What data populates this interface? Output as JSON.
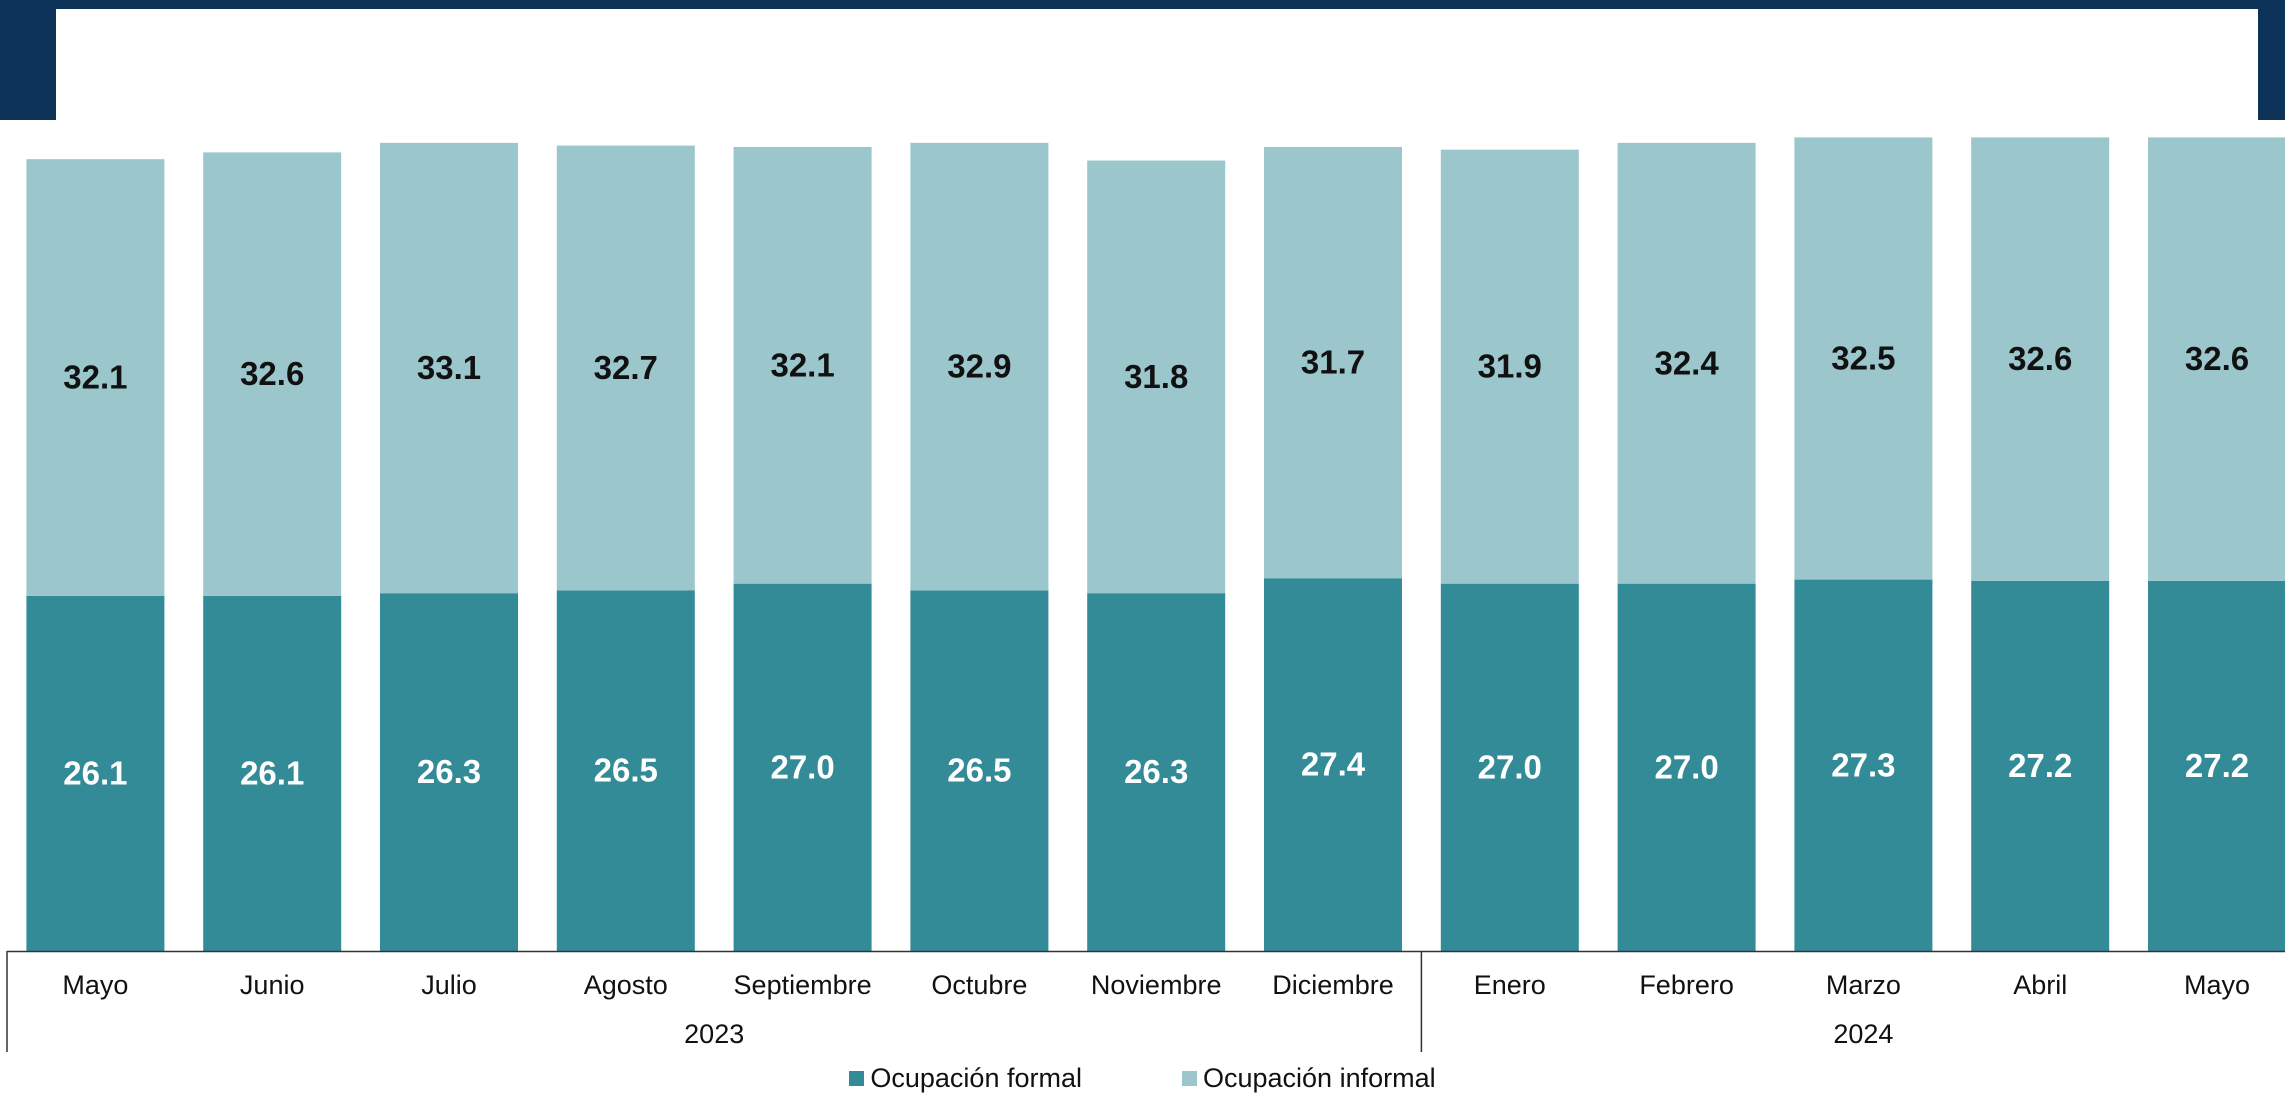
{
  "chart_data": {
    "type": "bar",
    "stacked": true,
    "categories": [
      "Mayo",
      "Junio",
      "Julio",
      "Agosto",
      "Septiembre",
      "Octubre",
      "Noviembre",
      "Diciembre",
      "Enero",
      "Febrero",
      "Marzo",
      "Abril",
      "Mayo"
    ],
    "groups": [
      {
        "label": "2023",
        "count": 8
      },
      {
        "label": "2024",
        "count": 5
      }
    ],
    "series": [
      {
        "name": "Ocupación formal",
        "color": "#348b98",
        "values": [
          26.1,
          26.1,
          26.3,
          26.5,
          27.0,
          26.5,
          26.3,
          27.4,
          27.0,
          27.0,
          27.3,
          27.2,
          27.2
        ]
      },
      {
        "name": "Ocupación informal",
        "color": "#9ac6cc",
        "values": [
          32.1,
          32.6,
          33.1,
          32.7,
          32.1,
          32.9,
          31.8,
          31.7,
          31.9,
          32.4,
          32.5,
          32.6,
          32.6
        ]
      }
    ],
    "ylim": [
      0,
      60
    ],
    "grid": false,
    "legend": "bottom-center"
  }
}
